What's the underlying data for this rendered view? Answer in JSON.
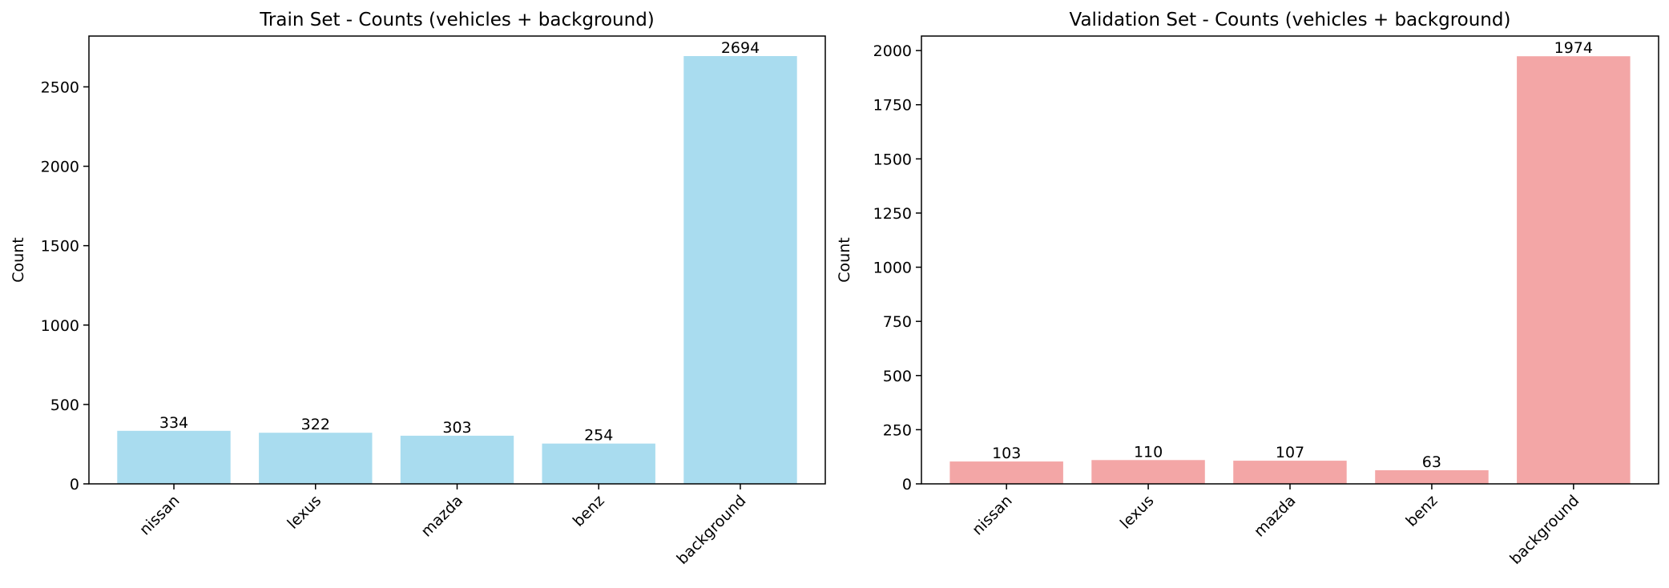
{
  "chart_data": [
    {
      "type": "bar",
      "title": "Train Set - Counts (vehicles + background)",
      "xlabel": "",
      "ylabel": "Count",
      "categories": [
        "nissan",
        "lexus",
        "mazda",
        "benz",
        "background"
      ],
      "values": [
        334,
        322,
        303,
        254,
        2694
      ],
      "ylim": [
        0,
        2820
      ],
      "yticks": [
        0,
        500,
        1000,
        1500,
        2000,
        2500
      ],
      "color": "#a9dcef",
      "grid": false,
      "legend": "none"
    },
    {
      "type": "bar",
      "title": "Validation Set - Counts (vehicles + background)",
      "xlabel": "",
      "ylabel": "Count",
      "categories": [
        "nissan",
        "lexus",
        "mazda",
        "benz",
        "background"
      ],
      "values": [
        103,
        110,
        107,
        63,
        1974
      ],
      "ylim": [
        0,
        2067
      ],
      "yticks": [
        0,
        250,
        500,
        750,
        1000,
        1250,
        1500,
        1750,
        2000
      ],
      "color": "#f3a6a6",
      "grid": false,
      "legend": "none"
    }
  ]
}
